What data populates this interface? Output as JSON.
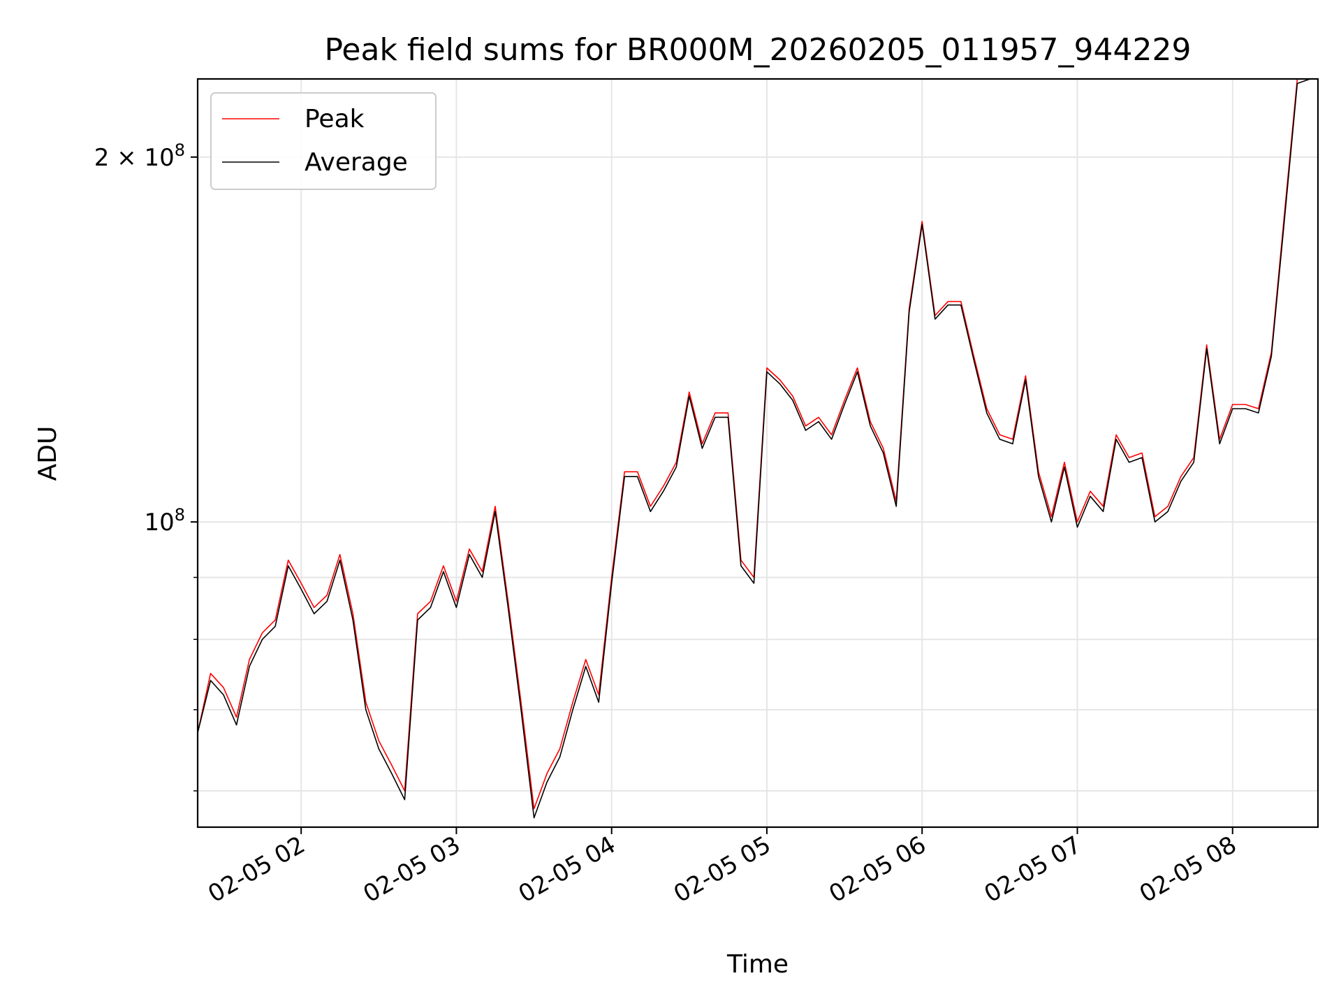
{
  "chart_data": {
    "type": "line",
    "title": "Peak field sums for BR000M_20260205_011957_944229",
    "xlabel": "Time",
    "ylabel": "ADU",
    "yscale": "log",
    "ylim": [
      56000000,
      232000000
    ],
    "xlim": [
      "2026-02-05 01:20",
      "2026-02-05 08:33"
    ],
    "grid": true,
    "legend_position": "top-left",
    "x_ticks": [
      {
        "time": "2026-02-05 02:00",
        "label": "02-05 02"
      },
      {
        "time": "2026-02-05 03:00",
        "label": "02-05 03"
      },
      {
        "time": "2026-02-05 04:00",
        "label": "02-05 04"
      },
      {
        "time": "2026-02-05 05:00",
        "label": "02-05 05"
      },
      {
        "time": "2026-02-05 06:00",
        "label": "02-05 06"
      },
      {
        "time": "2026-02-05 07:00",
        "label": "02-05 07"
      },
      {
        "time": "2026-02-05 08:00",
        "label": "02-05 08"
      }
    ],
    "y_ticks": [
      {
        "value": 100000000,
        "base": "10",
        "exp": "8",
        "coef": ""
      },
      {
        "value": 200000000,
        "base": "10",
        "exp": "8",
        "coef": "2 × "
      }
    ],
    "y_minor_ticks": [
      60000000,
      70000000,
      80000000,
      90000000
    ],
    "x": [
      "2026-02-05 01:20",
      "2026-02-05 01:25",
      "2026-02-05 01:30",
      "2026-02-05 01:35",
      "2026-02-05 01:40",
      "2026-02-05 01:45",
      "2026-02-05 01:50",
      "2026-02-05 01:55",
      "2026-02-05 02:00",
      "2026-02-05 02:05",
      "2026-02-05 02:10",
      "2026-02-05 02:15",
      "2026-02-05 02:20",
      "2026-02-05 02:25",
      "2026-02-05 02:30",
      "2026-02-05 02:35",
      "2026-02-05 02:40",
      "2026-02-05 02:45",
      "2026-02-05 02:50",
      "2026-02-05 02:55",
      "2026-02-05 03:00",
      "2026-02-05 03:05",
      "2026-02-05 03:10",
      "2026-02-05 03:15",
      "2026-02-05 03:20",
      "2026-02-05 03:25",
      "2026-02-05 03:30",
      "2026-02-05 03:35",
      "2026-02-05 03:40",
      "2026-02-05 03:45",
      "2026-02-05 03:50",
      "2026-02-05 03:55",
      "2026-02-05 04:00",
      "2026-02-05 04:05",
      "2026-02-05 04:10",
      "2026-02-05 04:15",
      "2026-02-05 04:20",
      "2026-02-05 04:25",
      "2026-02-05 04:30",
      "2026-02-05 04:35",
      "2026-02-05 04:40",
      "2026-02-05 04:45",
      "2026-02-05 04:50",
      "2026-02-05 04:55",
      "2026-02-05 05:00",
      "2026-02-05 05:05",
      "2026-02-05 05:10",
      "2026-02-05 05:15",
      "2026-02-05 05:20",
      "2026-02-05 05:25",
      "2026-02-05 05:30",
      "2026-02-05 05:35",
      "2026-02-05 05:40",
      "2026-02-05 05:45",
      "2026-02-05 05:50",
      "2026-02-05 05:55",
      "2026-02-05 06:00",
      "2026-02-05 06:05",
      "2026-02-05 06:10",
      "2026-02-05 06:15",
      "2026-02-05 06:20",
      "2026-02-05 06:25",
      "2026-02-05 06:30",
      "2026-02-05 06:35",
      "2026-02-05 06:40",
      "2026-02-05 06:45",
      "2026-02-05 06:50",
      "2026-02-05 06:55",
      "2026-02-05 07:00",
      "2026-02-05 07:05",
      "2026-02-05 07:10",
      "2026-02-05 07:15",
      "2026-02-05 07:20",
      "2026-02-05 07:25",
      "2026-02-05 07:30",
      "2026-02-05 07:35",
      "2026-02-05 07:40",
      "2026-02-05 07:45",
      "2026-02-05 07:50",
      "2026-02-05 07:55",
      "2026-02-05 08:00",
      "2026-02-05 08:05",
      "2026-02-05 08:10",
      "2026-02-05 08:15",
      "2026-02-05 08:20",
      "2026-02-05 08:25",
      "2026-02-05 08:30",
      "2026-02-05 08:33"
    ],
    "series": [
      {
        "name": "Peak",
        "color": "#ff0000",
        "values": [
          67,
          75,
          73,
          69,
          77,
          81,
          83,
          93,
          89,
          85,
          87,
          94,
          84,
          71,
          66,
          63,
          60,
          84,
          86,
          92,
          86,
          95,
          91,
          103,
          86,
          71,
          58,
          62,
          65,
          71,
          77,
          72,
          90,
          110,
          110,
          103,
          107,
          112,
          128,
          116,
          123,
          123,
          93,
          90,
          134,
          131,
          127,
          120,
          122,
          118,
          126,
          134,
          121,
          115,
          104,
          150,
          177,
          148,
          152,
          152,
          137,
          124,
          118,
          117,
          132,
          110,
          101,
          112,
          100,
          106,
          103,
          118,
          113,
          114,
          101,
          103,
          109,
          113,
          140,
          117,
          125,
          125,
          124,
          138,
          179,
          232,
          232,
          232
        ]
      },
      {
        "name": "Average",
        "color": "#000000",
        "values": [
          67,
          74,
          72,
          68,
          76,
          80,
          82,
          92,
          88,
          84,
          86,
          93,
          83,
          70,
          65,
          62,
          59,
          83,
          85,
          91,
          85,
          94,
          90,
          102,
          85,
          70,
          57,
          61,
          64,
          70,
          76,
          71,
          89,
          109,
          109,
          102,
          106,
          111,
          127,
          115,
          122,
          122,
          92,
          89,
          133,
          130,
          126,
          119,
          121,
          117,
          125,
          133,
          120,
          114,
          103,
          149,
          176,
          147,
          151,
          151,
          136,
          123,
          117,
          116,
          131,
          109,
          100,
          111,
          99,
          105,
          102,
          117,
          112,
          113,
          100,
          102,
          108,
          112,
          139,
          116,
          124,
          124,
          123,
          137,
          177,
          230,
          232,
          232
        ]
      }
    ],
    "values_unit": "millions of ADU"
  }
}
